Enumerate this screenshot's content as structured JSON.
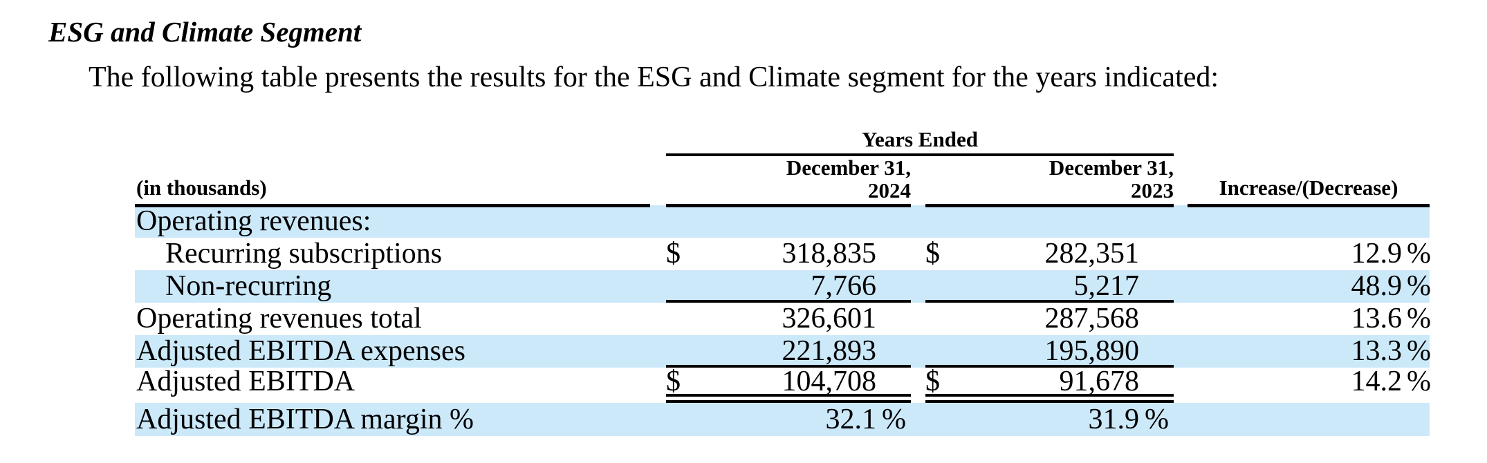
{
  "page": {
    "title": "ESG and Climate Segment",
    "intro": "The following table presents the results for the ESG and Climate segment for the years indicated:"
  },
  "colors": {
    "row_highlight": "#cce9fa"
  },
  "table": {
    "span_header": "Years Ended",
    "headers": {
      "label": "(in thousands)",
      "col2024": [
        "December 31,",
        "2024"
      ],
      "col2023": [
        "December 31,",
        "2023"
      ],
      "change": "Increase/(Decrease)"
    },
    "rows": [
      {
        "label": "Operating revenues:"
      },
      {
        "label": "Recurring subscriptions",
        "d1": "$",
        "v1": "318,835",
        "d2": "$",
        "v2": "282,351",
        "chg": "12.9",
        "chg_suffix": "%"
      },
      {
        "label": "Non-recurring",
        "v1": "7,766",
        "v2": "5,217",
        "chg": "48.9",
        "chg_suffix": "%"
      },
      {
        "label": "Operating revenues total",
        "v1": "326,601",
        "v2": "287,568",
        "chg": "13.6",
        "chg_suffix": "%"
      },
      {
        "label": "Adjusted EBITDA expenses",
        "v1": "221,893",
        "v2": "195,890",
        "chg": "13.3",
        "chg_suffix": "%"
      },
      {
        "label": "Adjusted EBITDA",
        "d1": "$",
        "v1": "104,708",
        "d2": "$",
        "v2": "91,678",
        "chg": "14.2",
        "chg_suffix": "%"
      },
      {
        "label": "Adjusted EBITDA margin %",
        "v1": "32.1",
        "v1_suffix": "%",
        "v2": "31.9",
        "v2_suffix": "%"
      }
    ]
  }
}
